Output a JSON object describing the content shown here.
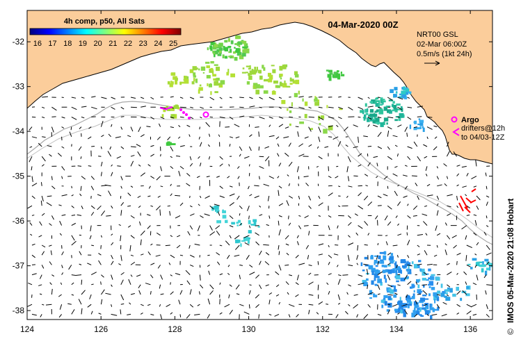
{
  "map": {
    "date_title": "04-Mar-2020 00Z",
    "colorbar": {
      "title": "4h comp, p50, All Sats",
      "ticks": [
        "16",
        "17",
        "18",
        "19",
        "20",
        "21",
        "22",
        "23",
        "24",
        "25"
      ],
      "range": [
        15.5,
        25.5
      ],
      "colors": [
        "#00007f",
        "#0000ff",
        "#007fff",
        "#00ffff",
        "#7fff7f",
        "#ffff00",
        "#ff7f00",
        "#ff0000",
        "#7f0000"
      ]
    },
    "info": {
      "line1": "NRT00 GSL",
      "line2": "02-Mar 06:00Z",
      "line3": "0.5m/s (1kt 24h)"
    },
    "legend": {
      "argo_label": "Argo",
      "drifters_line1": "drifters@12h",
      "drifters_line2": "to 04/03-12Z"
    },
    "credit": "IMOS 05-Mar-2020 21:08 Hobart",
    "copyright_symbol": "©",
    "x_axis": {
      "range": [
        124,
        136.6
      ],
      "ticks": [
        "124",
        "126",
        "128",
        "130",
        "132",
        "134",
        "136"
      ]
    },
    "y_axis": {
      "range": [
        -38.2,
        -31.3
      ],
      "ticks": [
        "-32",
        "-33",
        "-34",
        "-35",
        "-36",
        "-37",
        "-38"
      ]
    },
    "colors": {
      "land": "#fbcd9b",
      "coast": "#000000",
      "isobath": "#a8a8a8",
      "argo": "#ff00ff",
      "drifter": "#ff0000",
      "arrow": "#000000"
    }
  }
}
